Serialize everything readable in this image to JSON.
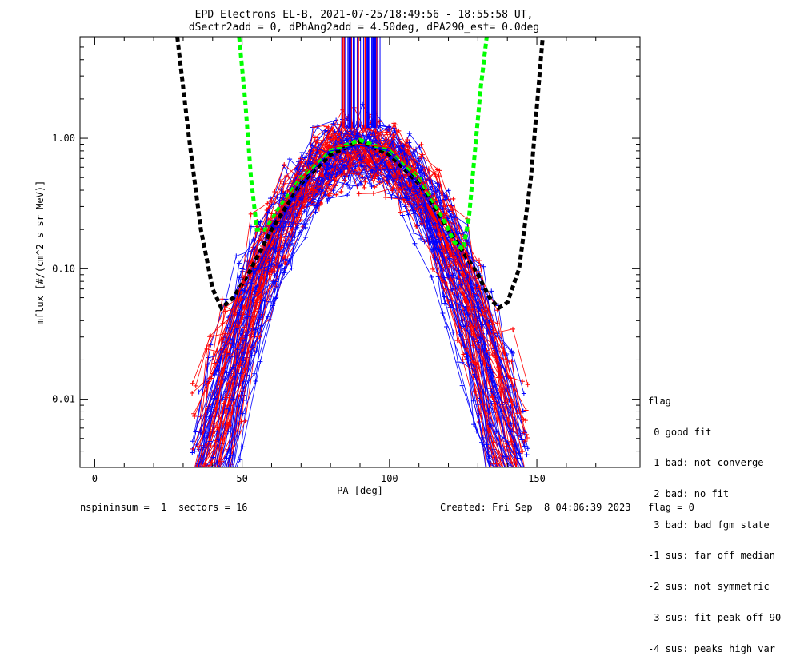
{
  "chart_data": {
    "type": "line",
    "title": "EPD Electrons EL-B, 2021-07-25/18:49:56 - 18:55:58 UT,",
    "subtitle": "dSectr2add = 0, dPhAng2add = 4.50deg, dPA290_est=   0.0deg",
    "xlabel": "PA [deg]",
    "ylabel": "mflux [#/(cm^2 s sr MeV)]",
    "xlim": [
      -5,
      185
    ],
    "ylim": [
      0.003,
      6
    ],
    "yscale": "log",
    "xticks": [
      {
        "v": 0,
        "label": "0"
      },
      {
        "v": 50,
        "label": "50"
      },
      {
        "v": 100,
        "label": "100"
      },
      {
        "v": 150,
        "label": "150"
      }
    ],
    "yticks": [
      {
        "v": 0.01,
        "label": "0.01"
      },
      {
        "v": 0.1,
        "label": "0.10"
      },
      {
        "v": 1,
        "label": "1.00"
      }
    ],
    "series": [
      {
        "color": "#000000",
        "style": "dashed",
        "x": [
          28,
          32,
          36,
          40,
          43,
          47,
          52,
          60,
          70,
          80,
          90,
          100,
          110,
          120,
          130,
          134,
          137,
          140,
          144,
          148,
          152
        ],
        "y": [
          6,
          1.0,
          0.2,
          0.07,
          0.05,
          0.06,
          0.09,
          0.2,
          0.45,
          0.75,
          0.95,
          0.75,
          0.45,
          0.2,
          0.09,
          0.06,
          0.05,
          0.055,
          0.1,
          0.5,
          6
        ]
      },
      {
        "color": "#00ff00",
        "style": "dashed",
        "x": [
          49,
          51,
          53,
          55,
          58,
          62,
          70,
          80,
          90,
          100,
          110,
          118,
          122,
          125,
          127,
          129,
          131,
          133
        ],
        "y": [
          6,
          2.0,
          0.5,
          0.2,
          0.2,
          0.28,
          0.5,
          0.8,
          0.97,
          0.8,
          0.5,
          0.25,
          0.16,
          0.14,
          0.25,
          0.8,
          2.5,
          6
        ]
      },
      {
        "color": "#ff0000",
        "style": "solid",
        "x": [
          40,
          55,
          70,
          80,
          90,
          100,
          110,
          125,
          140
        ],
        "y": [
          0.02,
          0.15,
          0.5,
          0.85,
          0.9,
          0.85,
          0.5,
          0.15,
          0.02
        ]
      },
      {
        "color": "#0000ff",
        "style": "solid",
        "x": [
          40,
          55,
          70,
          80,
          90,
          100,
          110,
          125,
          140
        ],
        "y": [
          0.015,
          0.1,
          0.45,
          0.8,
          0.88,
          0.8,
          0.45,
          0.1,
          0.015
        ]
      }
    ]
  },
  "footer": {
    "left": "nspininsum =  1  sectors = 16",
    "right": "Created: Fri Sep  8 04:06:39 2023   flag = 0"
  },
  "legend": {
    "title": "flag",
    "items": [
      " 0 good fit",
      " 1 bad: not converge",
      " 2 bad: no fit",
      " 3 bad: bad fgm state",
      "-1 sus: far off median",
      "-2 sus: not symmetric",
      "-3 sus: fit peak off 90",
      "-4 sus: peaks high var"
    ]
  }
}
